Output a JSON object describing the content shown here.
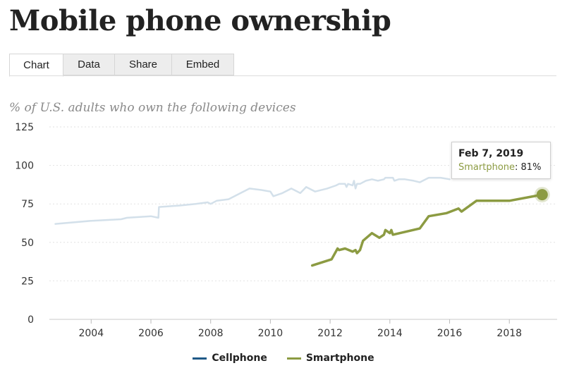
{
  "page": {
    "title": "Mobile phone ownership"
  },
  "tabs": [
    {
      "label": "Chart",
      "active": true
    },
    {
      "label": "Data",
      "active": false
    },
    {
      "label": "Share",
      "active": false
    },
    {
      "label": "Embed",
      "active": false
    }
  ],
  "tooltip": {
    "date": "Feb 7, 2019",
    "series": "Smartphone",
    "value": "81%"
  },
  "colors": {
    "cellphone": "#d3e0ea",
    "smartphone": "#8c9b42",
    "legend_cellphone": "#1f5a87"
  },
  "chart_data": {
    "type": "line",
    "title": "",
    "subtitle": "% of U.S. adults who own the following devices",
    "xlabel": "",
    "ylabel": "",
    "xlim": [
      2002.6,
      2019.6
    ],
    "ylim": [
      0,
      125
    ],
    "yticks": [
      0,
      25,
      50,
      75,
      100,
      125
    ],
    "xticks": [
      2004,
      2006,
      2008,
      2010,
      2012,
      2014,
      2016,
      2018
    ],
    "grid": true,
    "legend_position": "bottom",
    "series": [
      {
        "name": "Cellphone",
        "x": [
          2002.8,
          2004.0,
          2005.0,
          2005.2,
          2006.0,
          2006.25,
          2006.27,
          2007.0,
          2007.5,
          2007.9,
          2008.0,
          2008.2,
          2008.6,
          2009.0,
          2009.3,
          2009.7,
          2010.0,
          2010.1,
          2010.4,
          2010.7,
          2011.0,
          2011.2,
          2011.5,
          2011.9,
          2012.2,
          2012.3,
          2012.5,
          2012.55,
          2012.6,
          2012.75,
          2012.8,
          2012.85,
          2012.9,
          2013.0,
          2013.2,
          2013.4,
          2013.6,
          2013.8,
          2013.85,
          2014.1,
          2014.15,
          2014.3,
          2014.5,
          2014.8,
          2015.0,
          2015.3,
          2015.7,
          2016.0
        ],
        "y": [
          62,
          64,
          65,
          66,
          67,
          66,
          73,
          74,
          75,
          76,
          75,
          77,
          78,
          82,
          85,
          84,
          83,
          80,
          82,
          85,
          82,
          86,
          83,
          85,
          87,
          88,
          88,
          86,
          88,
          87,
          90,
          85,
          88,
          88,
          90,
          91,
          90,
          91,
          92,
          92,
          90,
          91,
          91,
          90,
          89,
          92,
          92,
          91
        ],
        "y_unit": "%"
      },
      {
        "name": "Smartphone",
        "x": [
          2011.4,
          2012.05,
          2012.25,
          2012.3,
          2012.5,
          2012.75,
          2012.85,
          2012.9,
          2013.0,
          2013.1,
          2013.4,
          2013.65,
          2013.8,
          2013.85,
          2014.0,
          2014.05,
          2014.1,
          2015.0,
          2015.3,
          2015.9,
          2016.3,
          2016.4,
          2016.9,
          2017.5,
          2018.0,
          2019.1
        ],
        "y": [
          35,
          39,
          46,
          45,
          46,
          44,
          45,
          43,
          45,
          51,
          56,
          53,
          55,
          58,
          56,
          58,
          55,
          59,
          67,
          69,
          72,
          70,
          77,
          77,
          77,
          81
        ],
        "y_unit": "%"
      }
    ],
    "highlight": {
      "series": "Smartphone",
      "x": 2019.1,
      "y": 81
    }
  }
}
